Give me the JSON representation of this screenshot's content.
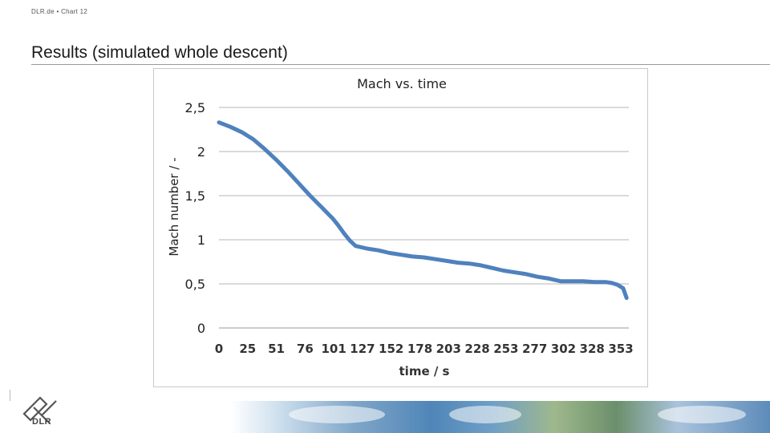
{
  "header": {
    "breadcrumb": "DLR.de  •  Chart 12",
    "title": "Results (simulated whole descent)"
  },
  "footer": {
    "logo_text": "DLR",
    "logo_icon": "dlr-cross-icon"
  },
  "chart_data": {
    "type": "line",
    "title": "Mach vs. time",
    "xlabel": "time / s",
    "ylabel": "Mach number / -",
    "ylim": [
      0,
      2.5
    ],
    "yticks": [
      "0",
      "0,5",
      "1",
      "1,5",
      "2",
      "2,5"
    ],
    "ytick_values": [
      0,
      0.5,
      1,
      1.5,
      2,
      2.5
    ],
    "x_tick_labels": [
      "0",
      "25",
      "51",
      "76",
      "101",
      "127",
      "152",
      "178",
      "203",
      "228",
      "253",
      "277",
      "302",
      "328",
      "353"
    ],
    "xlim": [
      0,
      360
    ],
    "grid": true,
    "legend": "none",
    "color": "#4f81bd",
    "series": [
      {
        "x": [
          0,
          10,
          20,
          30,
          40,
          50,
          60,
          70,
          80,
          90,
          100,
          105,
          110,
          115,
          120,
          130,
          140,
          150,
          160,
          170,
          180,
          190,
          200,
          210,
          220,
          230,
          240,
          250,
          260,
          270,
          280,
          290,
          300,
          310,
          320,
          330,
          340,
          345,
          350,
          355,
          358
        ],
        "y": [
          2.33,
          2.28,
          2.22,
          2.14,
          2.03,
          1.91,
          1.78,
          1.64,
          1.5,
          1.37,
          1.24,
          1.16,
          1.07,
          0.99,
          0.93,
          0.9,
          0.88,
          0.85,
          0.83,
          0.81,
          0.8,
          0.78,
          0.76,
          0.74,
          0.73,
          0.71,
          0.68,
          0.65,
          0.63,
          0.61,
          0.58,
          0.56,
          0.53,
          0.53,
          0.53,
          0.52,
          0.52,
          0.51,
          0.49,
          0.45,
          0.34
        ]
      }
    ]
  }
}
